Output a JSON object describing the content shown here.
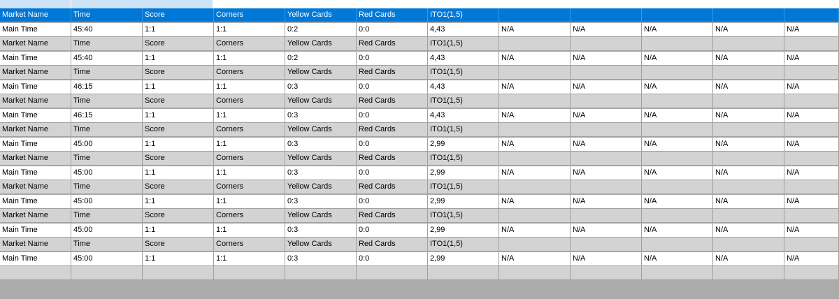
{
  "window": {
    "title": ""
  },
  "colors": {
    "selected_row": "#0078d7",
    "header_row": "#d3d3d3",
    "data_row": "#ffffff",
    "empty_area": "#ababab",
    "gridline": "#a0a0a0"
  },
  "grid": {
    "header_cells": [
      "Market Name",
      "Time",
      "Score",
      "Corners",
      "Yellow Cards",
      "Red Cards",
      "ITO1(1,5)",
      "",
      "",
      "",
      "",
      ""
    ],
    "rows": [
      {
        "type": "header",
        "selected": true,
        "cells": [
          "Market Name",
          "Time",
          "Score",
          "Corners",
          "Yellow Cards",
          "Red Cards",
          "ITO1(1,5)",
          "",
          "",
          "",
          "",
          ""
        ]
      },
      {
        "type": "data",
        "cells": [
          "Main Time",
          "45:40",
          "1:1",
          "1:1",
          "0:2",
          "0:0",
          "4,43",
          "N/A",
          "N/A",
          "N/A",
          "N/A",
          "N/A"
        ]
      },
      {
        "type": "header",
        "cells": [
          "Market Name",
          "Time",
          "Score",
          "Corners",
          "Yellow Cards",
          "Red Cards",
          "ITO1(1,5)",
          "",
          "",
          "",
          "",
          ""
        ]
      },
      {
        "type": "data",
        "cells": [
          "Main Time",
          "45:40",
          "1:1",
          "1:1",
          "0:2",
          "0:0",
          "4,43",
          "N/A",
          "N/A",
          "N/A",
          "N/A",
          "N/A"
        ]
      },
      {
        "type": "header",
        "cells": [
          "Market Name",
          "Time",
          "Score",
          "Corners",
          "Yellow Cards",
          "Red Cards",
          "ITO1(1,5)",
          "",
          "",
          "",
          "",
          ""
        ]
      },
      {
        "type": "data",
        "cells": [
          "Main Time",
          "46:15",
          "1:1",
          "1:1",
          "0:3",
          "0:0",
          "4,43",
          "N/A",
          "N/A",
          "N/A",
          "N/A",
          "N/A"
        ]
      },
      {
        "type": "header",
        "cells": [
          "Market Name",
          "Time",
          "Score",
          "Corners",
          "Yellow Cards",
          "Red Cards",
          "ITO1(1,5)",
          "",
          "",
          "",
          "",
          ""
        ]
      },
      {
        "type": "data",
        "cells": [
          "Main Time",
          "46:15",
          "1:1",
          "1:1",
          "0:3",
          "0:0",
          "4,43",
          "N/A",
          "N/A",
          "N/A",
          "N/A",
          "N/A"
        ]
      },
      {
        "type": "header",
        "cells": [
          "Market Name",
          "Time",
          "Score",
          "Corners",
          "Yellow Cards",
          "Red Cards",
          "ITO1(1,5)",
          "",
          "",
          "",
          "",
          ""
        ]
      },
      {
        "type": "data",
        "cells": [
          "Main Time",
          "45:00",
          "1:1",
          "1:1",
          "0:3",
          "0:0",
          "2,99",
          "N/A",
          "N/A",
          "N/A",
          "N/A",
          "N/A"
        ]
      },
      {
        "type": "header",
        "cells": [
          "Market Name",
          "Time",
          "Score",
          "Corners",
          "Yellow Cards",
          "Red Cards",
          "ITO1(1,5)",
          "",
          "",
          "",
          "",
          ""
        ]
      },
      {
        "type": "data",
        "cells": [
          "Main Time",
          "45:00",
          "1:1",
          "1:1",
          "0:3",
          "0:0",
          "2,99",
          "N/A",
          "N/A",
          "N/A",
          "N/A",
          "N/A"
        ]
      },
      {
        "type": "header",
        "cells": [
          "Market Name",
          "Time",
          "Score",
          "Corners",
          "Yellow Cards",
          "Red Cards",
          "ITO1(1,5)",
          "",
          "",
          "",
          "",
          ""
        ]
      },
      {
        "type": "data",
        "cells": [
          "Main Time",
          "45:00",
          "1:1",
          "1:1",
          "0:3",
          "0:0",
          "2,99",
          "N/A",
          "N/A",
          "N/A",
          "N/A",
          "N/A"
        ]
      },
      {
        "type": "header",
        "cells": [
          "Market Name",
          "Time",
          "Score",
          "Corners",
          "Yellow Cards",
          "Red Cards",
          "ITO1(1,5)",
          "",
          "",
          "",
          "",
          ""
        ]
      },
      {
        "type": "data",
        "cells": [
          "Main Time",
          "45:00",
          "1:1",
          "1:1",
          "0:3",
          "0:0",
          "2,99",
          "N/A",
          "N/A",
          "N/A",
          "N/A",
          "N/A"
        ]
      },
      {
        "type": "header",
        "cells": [
          "Market Name",
          "Time",
          "Score",
          "Corners",
          "Yellow Cards",
          "Red Cards",
          "ITO1(1,5)",
          "",
          "",
          "",
          "",
          ""
        ]
      },
      {
        "type": "data",
        "cells": [
          "Main Time",
          "45:00",
          "1:1",
          "1:1",
          "0:3",
          "0:0",
          "2,99",
          "N/A",
          "N/A",
          "N/A",
          "N/A",
          "N/A"
        ]
      },
      {
        "type": "new",
        "cells": [
          "",
          "",
          "",
          "",
          "",
          "",
          "",
          "",
          "",
          "",
          "",
          ""
        ]
      }
    ]
  }
}
